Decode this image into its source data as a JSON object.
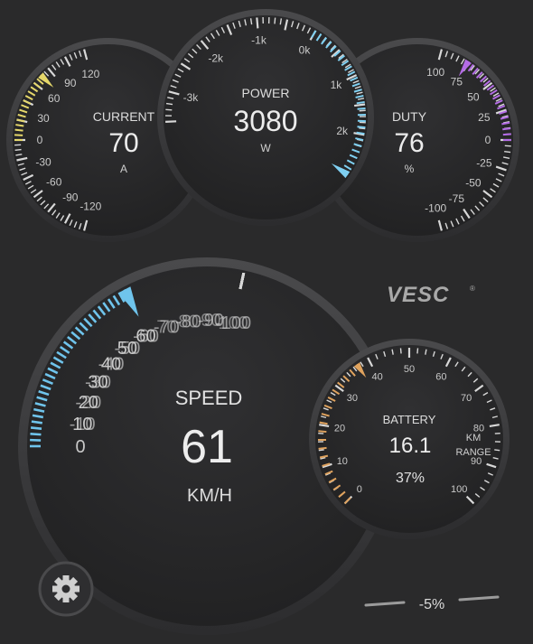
{
  "colors": {
    "background": "#2a2a2b",
    "dial_face": "#262627",
    "ring": "#3b3b3d",
    "tick": "#d8d8d8",
    "label": "#c9c9c9",
    "current_accent": "#e5d76a",
    "power_accent": "#7fd0f2",
    "duty_accent": "#b46ce6",
    "speed_accent": "#6fc4ec",
    "battery_accent": "#e0a35e"
  },
  "gauges": {
    "current": {
      "title": "CURRENT",
      "value": "70",
      "unit": "A",
      "scale": [
        "-120",
        "-90",
        "-60",
        "-30",
        "0",
        "30",
        "60",
        "90",
        "120"
      ]
    },
    "power": {
      "title": "POWER",
      "value": "3080",
      "unit": "W",
      "scale": [
        "-3k",
        "-2k",
        "-1k",
        "0k",
        "1k",
        "2k"
      ]
    },
    "duty": {
      "title": "DUTY",
      "value": "76",
      "unit": "%",
      "scale": [
        "100",
        "75",
        "50",
        "25",
        "0",
        "-25",
        "-50",
        "-75",
        "-100"
      ]
    },
    "speed": {
      "title": "SPEED",
      "value": "61",
      "unit": "KM/H",
      "level": 61,
      "scale": [
        "0",
        "10",
        "20",
        "30",
        "40",
        "50",
        "60",
        "70",
        "80",
        "90",
        "100",
        "-10",
        "-20",
        "-30",
        "-40",
        "-50",
        "-60",
        "-70",
        "-80",
        "-90",
        "-100"
      ]
    },
    "battery": {
      "title": "BATTERY",
      "value": "16.1",
      "unit_line1": "KM",
      "unit_line2": "RANGE",
      "percent": "37%",
      "level": 37,
      "scale": [
        "0",
        "10",
        "20",
        "30",
        "40",
        "50",
        "60",
        "70",
        "80",
        "90",
        "100"
      ]
    }
  },
  "logo": {
    "text": "VESC",
    "mark": "®"
  },
  "footer": {
    "slope": "-5%"
  },
  "settings_icon": "gear-icon"
}
